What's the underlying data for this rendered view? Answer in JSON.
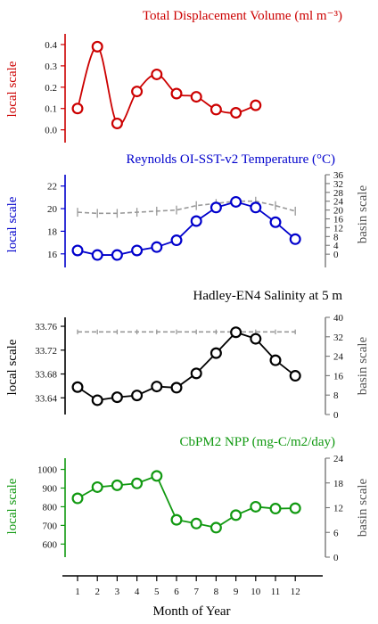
{
  "chart_data": [
    {
      "type": "line",
      "title": "Total Displacement Volume (ml m⁻³)",
      "color": "#cc0000",
      "ylabel_left": "local scale",
      "ylabel_right": "",
      "left_ticks": [
        0.0,
        0.1,
        0.2,
        0.3,
        0.4
      ],
      "left_tick_labels": [
        "0.0",
        "0.1",
        "0.2",
        "0.3",
        "0.4"
      ],
      "ylim_left": [
        -0.06,
        0.45
      ],
      "smooth": true,
      "local_series": {
        "x": [
          1,
          2,
          3,
          4,
          5,
          6,
          7,
          8,
          9,
          10
        ],
        "values": [
          0.1,
          0.39,
          0.03,
          0.18,
          0.26,
          0.17,
          0.155,
          0.095,
          0.08,
          0.115
        ]
      },
      "basin_series": null
    },
    {
      "type": "line",
      "title": "Reynolds OI-SST-v2 Temperature (°C)",
      "color": "#0000cc",
      "ylabel_left": "local scale",
      "ylabel_right": "basin scale",
      "left_ticks": [
        16,
        18,
        20,
        22
      ],
      "left_tick_labels": [
        "16",
        "18",
        "20",
        "22"
      ],
      "ylim_left": [
        14.8,
        23
      ],
      "right_ticks": [
        0,
        4,
        8,
        12,
        16,
        20,
        24,
        28,
        32,
        36
      ],
      "right_tick_labels": [
        "0",
        "4",
        "8",
        "12",
        "16",
        "20",
        "24",
        "28",
        "32",
        "36"
      ],
      "ylim_right": [
        -6,
        36
      ],
      "smooth": false,
      "local_series": {
        "x": [
          1,
          2,
          3,
          4,
          5,
          6,
          7,
          8,
          9,
          10,
          11,
          12
        ],
        "values": [
          16.3,
          15.9,
          15.9,
          16.3,
          16.6,
          17.2,
          18.9,
          20.1,
          20.6,
          20.1,
          18.8,
          17.3
        ]
      },
      "basin_series": {
        "x": [
          1,
          2,
          3,
          4,
          5,
          6,
          7,
          8,
          9,
          10,
          11,
          12
        ],
        "values": [
          19,
          18.5,
          18.5,
          19,
          19.5,
          20,
          22,
          23,
          24,
          24,
          22,
          19.5
        ],
        "err": [
          2,
          2,
          2,
          2,
          2,
          2,
          2,
          2,
          2,
          2,
          2,
          2
        ]
      }
    },
    {
      "type": "line",
      "title": "Hadley-EN4 Salinity at 5 m",
      "color": "#000000",
      "ylabel_left": "local scale",
      "ylabel_right": "basin scale",
      "left_ticks": [
        33.64,
        33.68,
        33.72,
        33.76
      ],
      "left_tick_labels": [
        "33.64",
        "33.68",
        "33.72",
        "33.76"
      ],
      "ylim_left": [
        33.612,
        33.775
      ],
      "right_ticks": [
        0,
        8,
        16,
        24,
        32,
        40
      ],
      "right_tick_labels": [
        "0",
        "8",
        "16",
        "24",
        "32",
        "40"
      ],
      "ylim_right": [
        0,
        40
      ],
      "smooth": false,
      "local_series": {
        "x": [
          1,
          2,
          3,
          4,
          5,
          6,
          7,
          8,
          9,
          10,
          11,
          12
        ],
        "values": [
          33.658,
          33.636,
          33.641,
          33.644,
          33.659,
          33.657,
          33.681,
          33.715,
          33.75,
          33.739,
          33.703,
          33.677
        ]
      },
      "basin_series": {
        "x": [
          1,
          2,
          3,
          4,
          5,
          6,
          7,
          8,
          9,
          10,
          11,
          12
        ],
        "values": [
          34,
          34,
          34,
          34,
          34,
          34,
          34,
          34,
          34,
          34,
          34,
          34
        ],
        "err": [
          1,
          1,
          1,
          1,
          1,
          1,
          1,
          1,
          1,
          1,
          1,
          1
        ]
      }
    },
    {
      "type": "line",
      "title": "CbPM2 NPP (mg-C/m2/day)",
      "color": "#119911",
      "ylabel_left": "local scale",
      "ylabel_right": "basin scale",
      "left_ticks": [
        600,
        700,
        800,
        900,
        1000
      ],
      "left_tick_labels": [
        "600",
        "700",
        "800",
        "900",
        "1000"
      ],
      "ylim_left": [
        530,
        1060
      ],
      "right_ticks": [
        0,
        6,
        12,
        18,
        24
      ],
      "right_tick_labels": [
        "0",
        "6",
        "12",
        "18",
        "24"
      ],
      "ylim_right": [
        0,
        24
      ],
      "smooth": false,
      "local_series": {
        "x": [
          1,
          2,
          3,
          4,
          5,
          6,
          7,
          8,
          9,
          10,
          11,
          12
        ],
        "values": [
          845,
          905,
          915,
          925,
          965,
          730,
          710,
          688,
          755,
          800,
          790,
          792
        ]
      },
      "basin_series": null
    }
  ],
  "xaxis": {
    "label": "Month of Year",
    "ticks": [
      "1",
      "2",
      "3",
      "4",
      "5",
      "6",
      "7",
      "8",
      "9",
      "10",
      "11",
      "12"
    ]
  }
}
